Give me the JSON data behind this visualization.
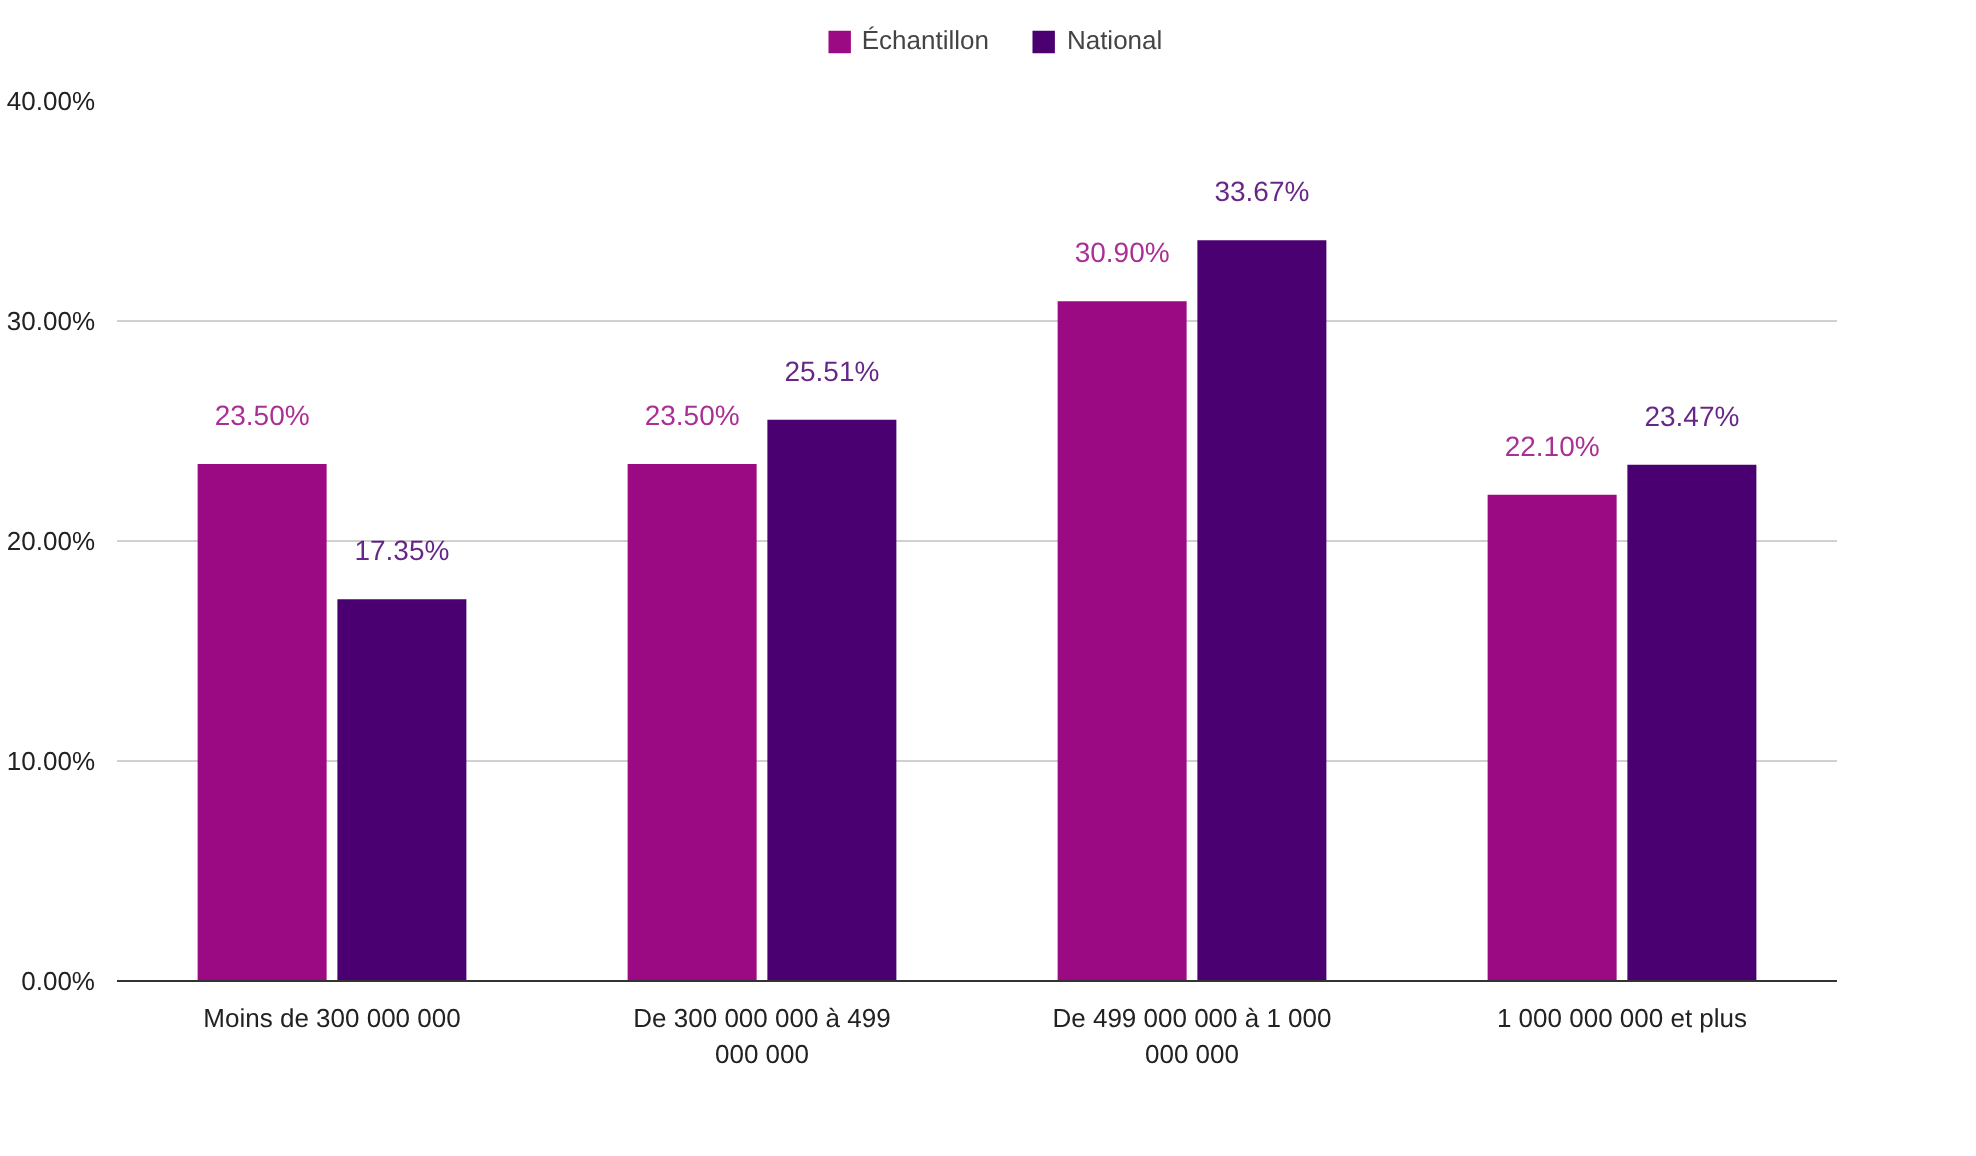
{
  "chart_data": {
    "type": "bar",
    "categories": [
      "Moins de 300 000 000",
      "De 300 000 000 à 499 000 000",
      "De 499 000 000 à 1 000 000 000",
      "1 000 000 000 et plus"
    ],
    "series": [
      {
        "name": "Échantillon",
        "color": "#9b0a82",
        "values": [
          23.5,
          23.5,
          30.9,
          22.1
        ],
        "value_labels": [
          "23.50%",
          "23.50%",
          "30.90%",
          "22.10%"
        ]
      },
      {
        "name": "National",
        "color": "#4b0072",
        "values": [
          17.35,
          25.51,
          33.67,
          23.47
        ],
        "value_labels": [
          "17.35%",
          "25.51%",
          "33.67%",
          "23.47%"
        ]
      }
    ],
    "ylim": [
      0,
      40
    ],
    "yticks": [
      {
        "value": 0,
        "label": "0.00%"
      },
      {
        "value": 10,
        "label": "10.00%"
      },
      {
        "value": 20,
        "label": "20.00%"
      },
      {
        "value": 30,
        "label": "30.00%"
      },
      {
        "value": 40,
        "label": "40.00%"
      }
    ],
    "grid": "y",
    "legend": "top"
  }
}
